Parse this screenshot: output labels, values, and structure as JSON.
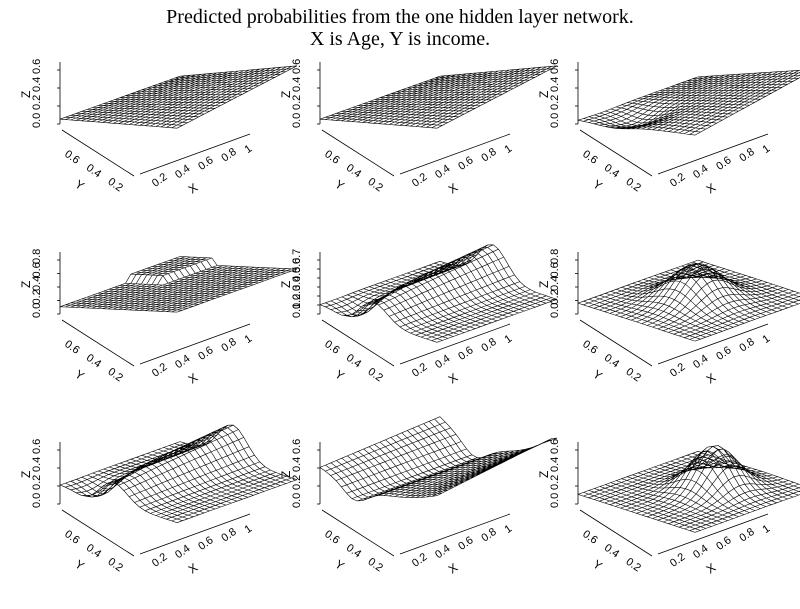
{
  "title": {
    "line1": "Predicted probabilities from the one hidden layer network.",
    "line2": "X is Age, Y is income."
  },
  "chart_data": [
    {
      "type": "surface",
      "xlabel": "X",
      "ylabel": "Y",
      "zlabel": "Z",
      "xticks": [
        "0.2",
        "0.4",
        "0.6",
        "0.8",
        "1"
      ],
      "yticks": [
        "0.6",
        "0.4",
        "0.2"
      ],
      "zticks": [
        "0.0",
        "0.2",
        "0.4",
        "0.6"
      ],
      "zlim": [
        0,
        0.6
      ],
      "shape": "ramp"
    },
    {
      "type": "surface",
      "xlabel": "X",
      "ylabel": "Y",
      "zlabel": "Z",
      "xticks": [
        "0.2",
        "0.4",
        "0.6",
        "0.8",
        "1"
      ],
      "yticks": [
        "0.6",
        "0.4",
        "0.2"
      ],
      "zticks": [
        "0.0",
        "0.2",
        "0.4",
        "0.6"
      ],
      "zlim": [
        0,
        0.6
      ],
      "shape": "ramp"
    },
    {
      "type": "surface",
      "xlabel": "X",
      "ylabel": "Y",
      "zlabel": "Z",
      "xticks": [
        "0.2",
        "0.4",
        "0.6",
        "0.8",
        "1"
      ],
      "yticks": [
        "0.6",
        "0.4",
        "0.2"
      ],
      "zticks": [
        "0.0",
        "0.2",
        "0.4",
        "0.6"
      ],
      "zlim": [
        0,
        0.7
      ],
      "shape": "ramp-dip"
    },
    {
      "type": "surface",
      "xlabel": "X",
      "ylabel": "Y",
      "zlabel": "Z",
      "xticks": [
        "0.2",
        "0.4",
        "0.6",
        "0.8",
        "1"
      ],
      "yticks": [
        "0.6",
        "0.4",
        "0.2"
      ],
      "zticks": [
        "0.0",
        "0.2",
        "0.4",
        "0.6",
        "0.8"
      ],
      "zlim": [
        0,
        0.8
      ],
      "shape": "step"
    },
    {
      "type": "surface",
      "xlabel": "X",
      "ylabel": "Y",
      "zlabel": "Z",
      "xticks": [
        "0.2",
        "0.4",
        "0.6",
        "0.8",
        "1"
      ],
      "yticks": [
        "0.6",
        "0.4",
        "0.2"
      ],
      "zticks": [
        "0.1",
        "0.2",
        "0.3",
        "0.4",
        "0.5",
        "0.6",
        "0.7"
      ],
      "zlim": [
        0.1,
        0.7
      ],
      "shape": "ridge"
    },
    {
      "type": "surface",
      "xlabel": "X",
      "ylabel": "Y",
      "zlabel": "Z",
      "xticks": [
        "0.2",
        "0.4",
        "0.6",
        "0.8",
        "1"
      ],
      "yticks": [
        "0.6",
        "0.4",
        "0.2"
      ],
      "zticks": [
        "0.0",
        "0.2",
        "0.4",
        "0.6",
        "0.8"
      ],
      "zlim": [
        0,
        0.8
      ],
      "shape": "hill"
    },
    {
      "type": "surface",
      "xlabel": "X",
      "ylabel": "Y",
      "zlabel": "Z",
      "xticks": [
        "0.2",
        "0.4",
        "0.6",
        "0.8",
        "1"
      ],
      "yticks": [
        "0.6",
        "0.4",
        "0.2"
      ],
      "zticks": [
        "0.0",
        "0.2",
        "0.4",
        "0.6"
      ],
      "zlim": [
        0,
        0.6
      ],
      "shape": "ridge"
    },
    {
      "type": "surface",
      "xlabel": "X",
      "ylabel": "Y",
      "zlabel": "Z",
      "xticks": [
        "0.2",
        "0.4",
        "0.6",
        "0.8",
        "1"
      ],
      "yticks": [
        "0.6",
        "0.4",
        "0.2"
      ],
      "zticks": [
        "0.0",
        "0.2",
        "0.4",
        "0.6"
      ],
      "zlim": [
        0,
        0.6
      ],
      "shape": "valley"
    },
    {
      "type": "surface",
      "xlabel": "X",
      "ylabel": "Y",
      "zlabel": "Z",
      "xticks": [
        "0.2",
        "0.4",
        "0.6",
        "0.8",
        "1"
      ],
      "yticks": [
        "0.6",
        "0.4",
        "0.2"
      ],
      "zticks": [
        "0.0",
        "0.2",
        "0.4",
        "0.6"
      ],
      "zlim": [
        0,
        0.6
      ],
      "shape": "bump"
    }
  ]
}
